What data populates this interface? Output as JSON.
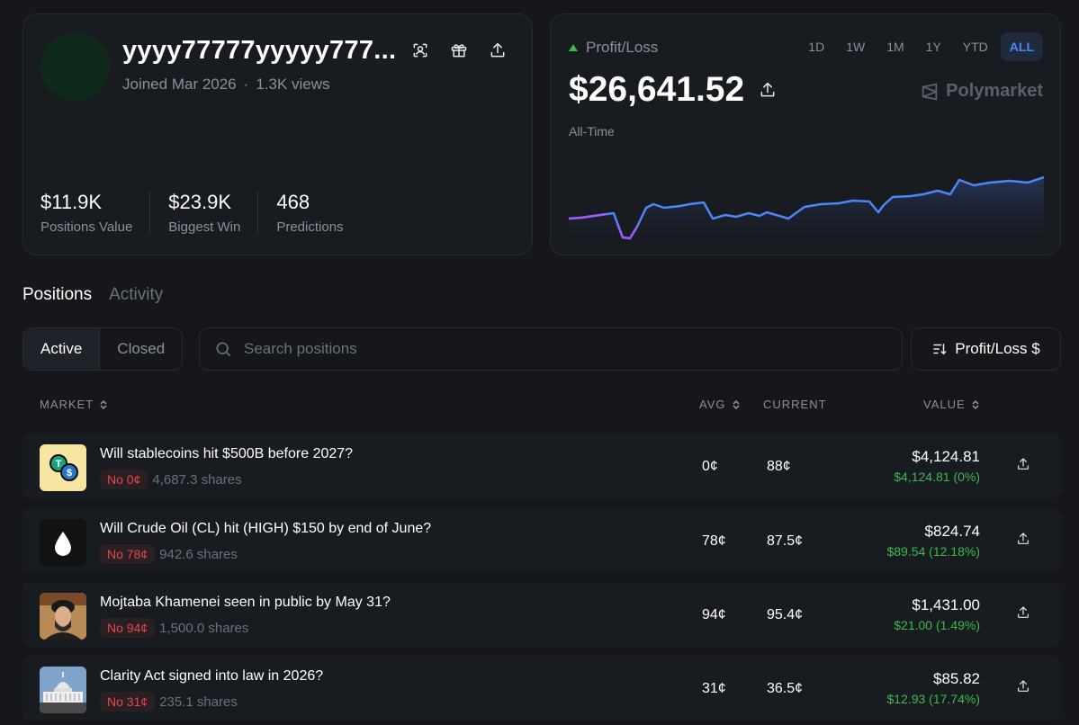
{
  "profile": {
    "username": "yyyy77777yyyyy777...",
    "joined": "Joined Mar 2026",
    "views": "1.3K views",
    "stats": [
      {
        "value": "$11.9K",
        "label": "Positions Value"
      },
      {
        "value": "$23.9K",
        "label": "Biggest Win"
      },
      {
        "value": "468",
        "label": "Predictions"
      }
    ],
    "icons": [
      "scan-icon",
      "gift-icon",
      "share-icon"
    ]
  },
  "pnl": {
    "label": "Profit/Loss",
    "value": "$26,641.52",
    "period": "All-Time",
    "brand": "Polymarket",
    "ranges": [
      "1D",
      "1W",
      "1M",
      "1Y",
      "YTD",
      "ALL"
    ],
    "active_range": "ALL",
    "trend_color": "#3fb950",
    "line_color": "#4f86f7",
    "dip_color": "#9b5cf6"
  },
  "tabs": [
    "Positions",
    "Activity"
  ],
  "active_tab": "Positions",
  "filter": {
    "active": "Active",
    "closed": "Closed"
  },
  "search": {
    "placeholder": "Search positions"
  },
  "sort": {
    "label": "Profit/Loss $"
  },
  "table": {
    "headers": {
      "market": "MARKET",
      "avg": "AVG",
      "current": "CURRENT",
      "value": "VALUE"
    },
    "rows": [
      {
        "title": "Will stablecoins hit $500B before 2027?",
        "badge": "No 0¢",
        "shares": "4,687.3 shares",
        "avg": "0¢",
        "current": "88¢",
        "value": "$4,124.81",
        "change": "$4,124.81 (0%)"
      },
      {
        "title": "Will Crude Oil (CL) hit (HIGH) $150 by end of June?",
        "badge": "No 78¢",
        "shares": "942.6 shares",
        "avg": "78¢",
        "current": "87.5¢",
        "value": "$824.74",
        "change": "$89.54 (12.18%)"
      },
      {
        "title": "Mojtaba Khamenei seen in public by May 31?",
        "badge": "No 94¢",
        "shares": "1,500.0 shares",
        "avg": "94¢",
        "current": "95.4¢",
        "value": "$1,431.00",
        "change": "$21.00 (1.49%)"
      },
      {
        "title": "Clarity Act signed into law in 2026?",
        "badge": "No 31¢",
        "shares": "235.1 shares",
        "avg": "31¢",
        "current": "36.5¢",
        "value": "$85.82",
        "change": "$12.93 (17.74%)"
      }
    ]
  }
}
